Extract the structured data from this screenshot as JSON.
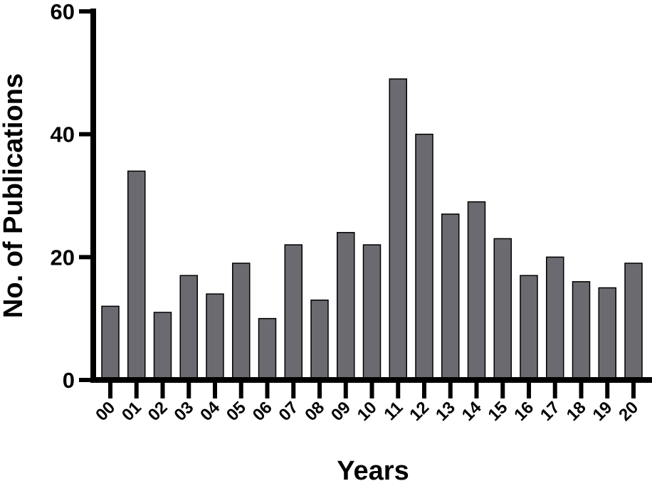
{
  "chart_data": {
    "type": "bar",
    "title": "",
    "xlabel": "Years",
    "ylabel": "No. of Publications",
    "categories": [
      "00",
      "01",
      "02",
      "03",
      "04",
      "05",
      "06",
      "07",
      "08",
      "09",
      "10",
      "11",
      "12",
      "13",
      "14",
      "15",
      "16",
      "17",
      "18",
      "19",
      "20"
    ],
    "values": [
      12,
      34,
      11,
      17,
      14,
      19,
      10,
      22,
      13,
      24,
      22,
      49,
      40,
      27,
      29,
      23,
      17,
      20,
      16,
      15,
      19
    ],
    "ylim": [
      0,
      60
    ],
    "yticks": [
      0,
      20,
      40,
      60
    ],
    "grid": false,
    "legend": "none",
    "colors": {
      "bar_fill": "#6a6a70",
      "bar_stroke": "#000000",
      "axis": "#000000"
    }
  }
}
